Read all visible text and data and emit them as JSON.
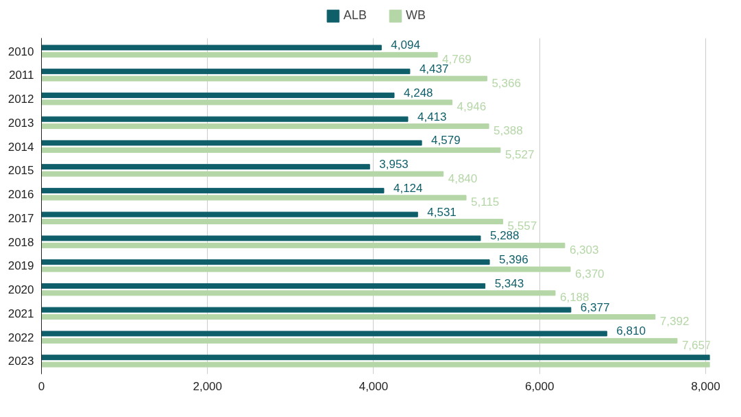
{
  "chart_data": {
    "type": "bar",
    "orientation": "horizontal",
    "categories": [
      "2010",
      "2011",
      "2012",
      "2013",
      "2014",
      "2015",
      "2016",
      "2017",
      "2018",
      "2019",
      "2020",
      "2021",
      "2022",
      "2023"
    ],
    "series": [
      {
        "name": "ALB",
        "color": "#0f5f6b",
        "values": [
          4094,
          4437,
          4248,
          4413,
          4579,
          3953,
          4124,
          4531,
          5288,
          5396,
          5343,
          6377,
          6810,
          8050
        ],
        "value_labels": [
          "4,094",
          "4,437",
          "4,248",
          "4,413",
          "4,579",
          "3,953",
          "4,124",
          "4,531",
          "5,288",
          "5,396",
          "5,343",
          "6,377",
          "6,810",
          null
        ]
      },
      {
        "name": "WB",
        "color": "#b5d6a7",
        "values": [
          4769,
          5366,
          4946,
          5388,
          5527,
          4840,
          5115,
          5557,
          6303,
          6370,
          6188,
          7392,
          7657,
          8050
        ],
        "value_labels": [
          "4,769",
          "5,366",
          "4,946",
          "5,388",
          "5,527",
          "4,840",
          "5,115",
          "5,557",
          "6,303",
          "6,370",
          "6,188",
          "7,392",
          "7,657",
          null
        ]
      }
    ],
    "xlim": [
      0,
      8050
    ],
    "xticks": [
      0,
      {
        "value": 2000,
        "label": "2,000"
      },
      {
        "value": 4000,
        "label": "4,000"
      },
      {
        "value": 6000,
        "label": "6,000"
      },
      {
        "value": 8000,
        "label": "8,000"
      }
    ],
    "grid": "x",
    "legend": "top"
  }
}
